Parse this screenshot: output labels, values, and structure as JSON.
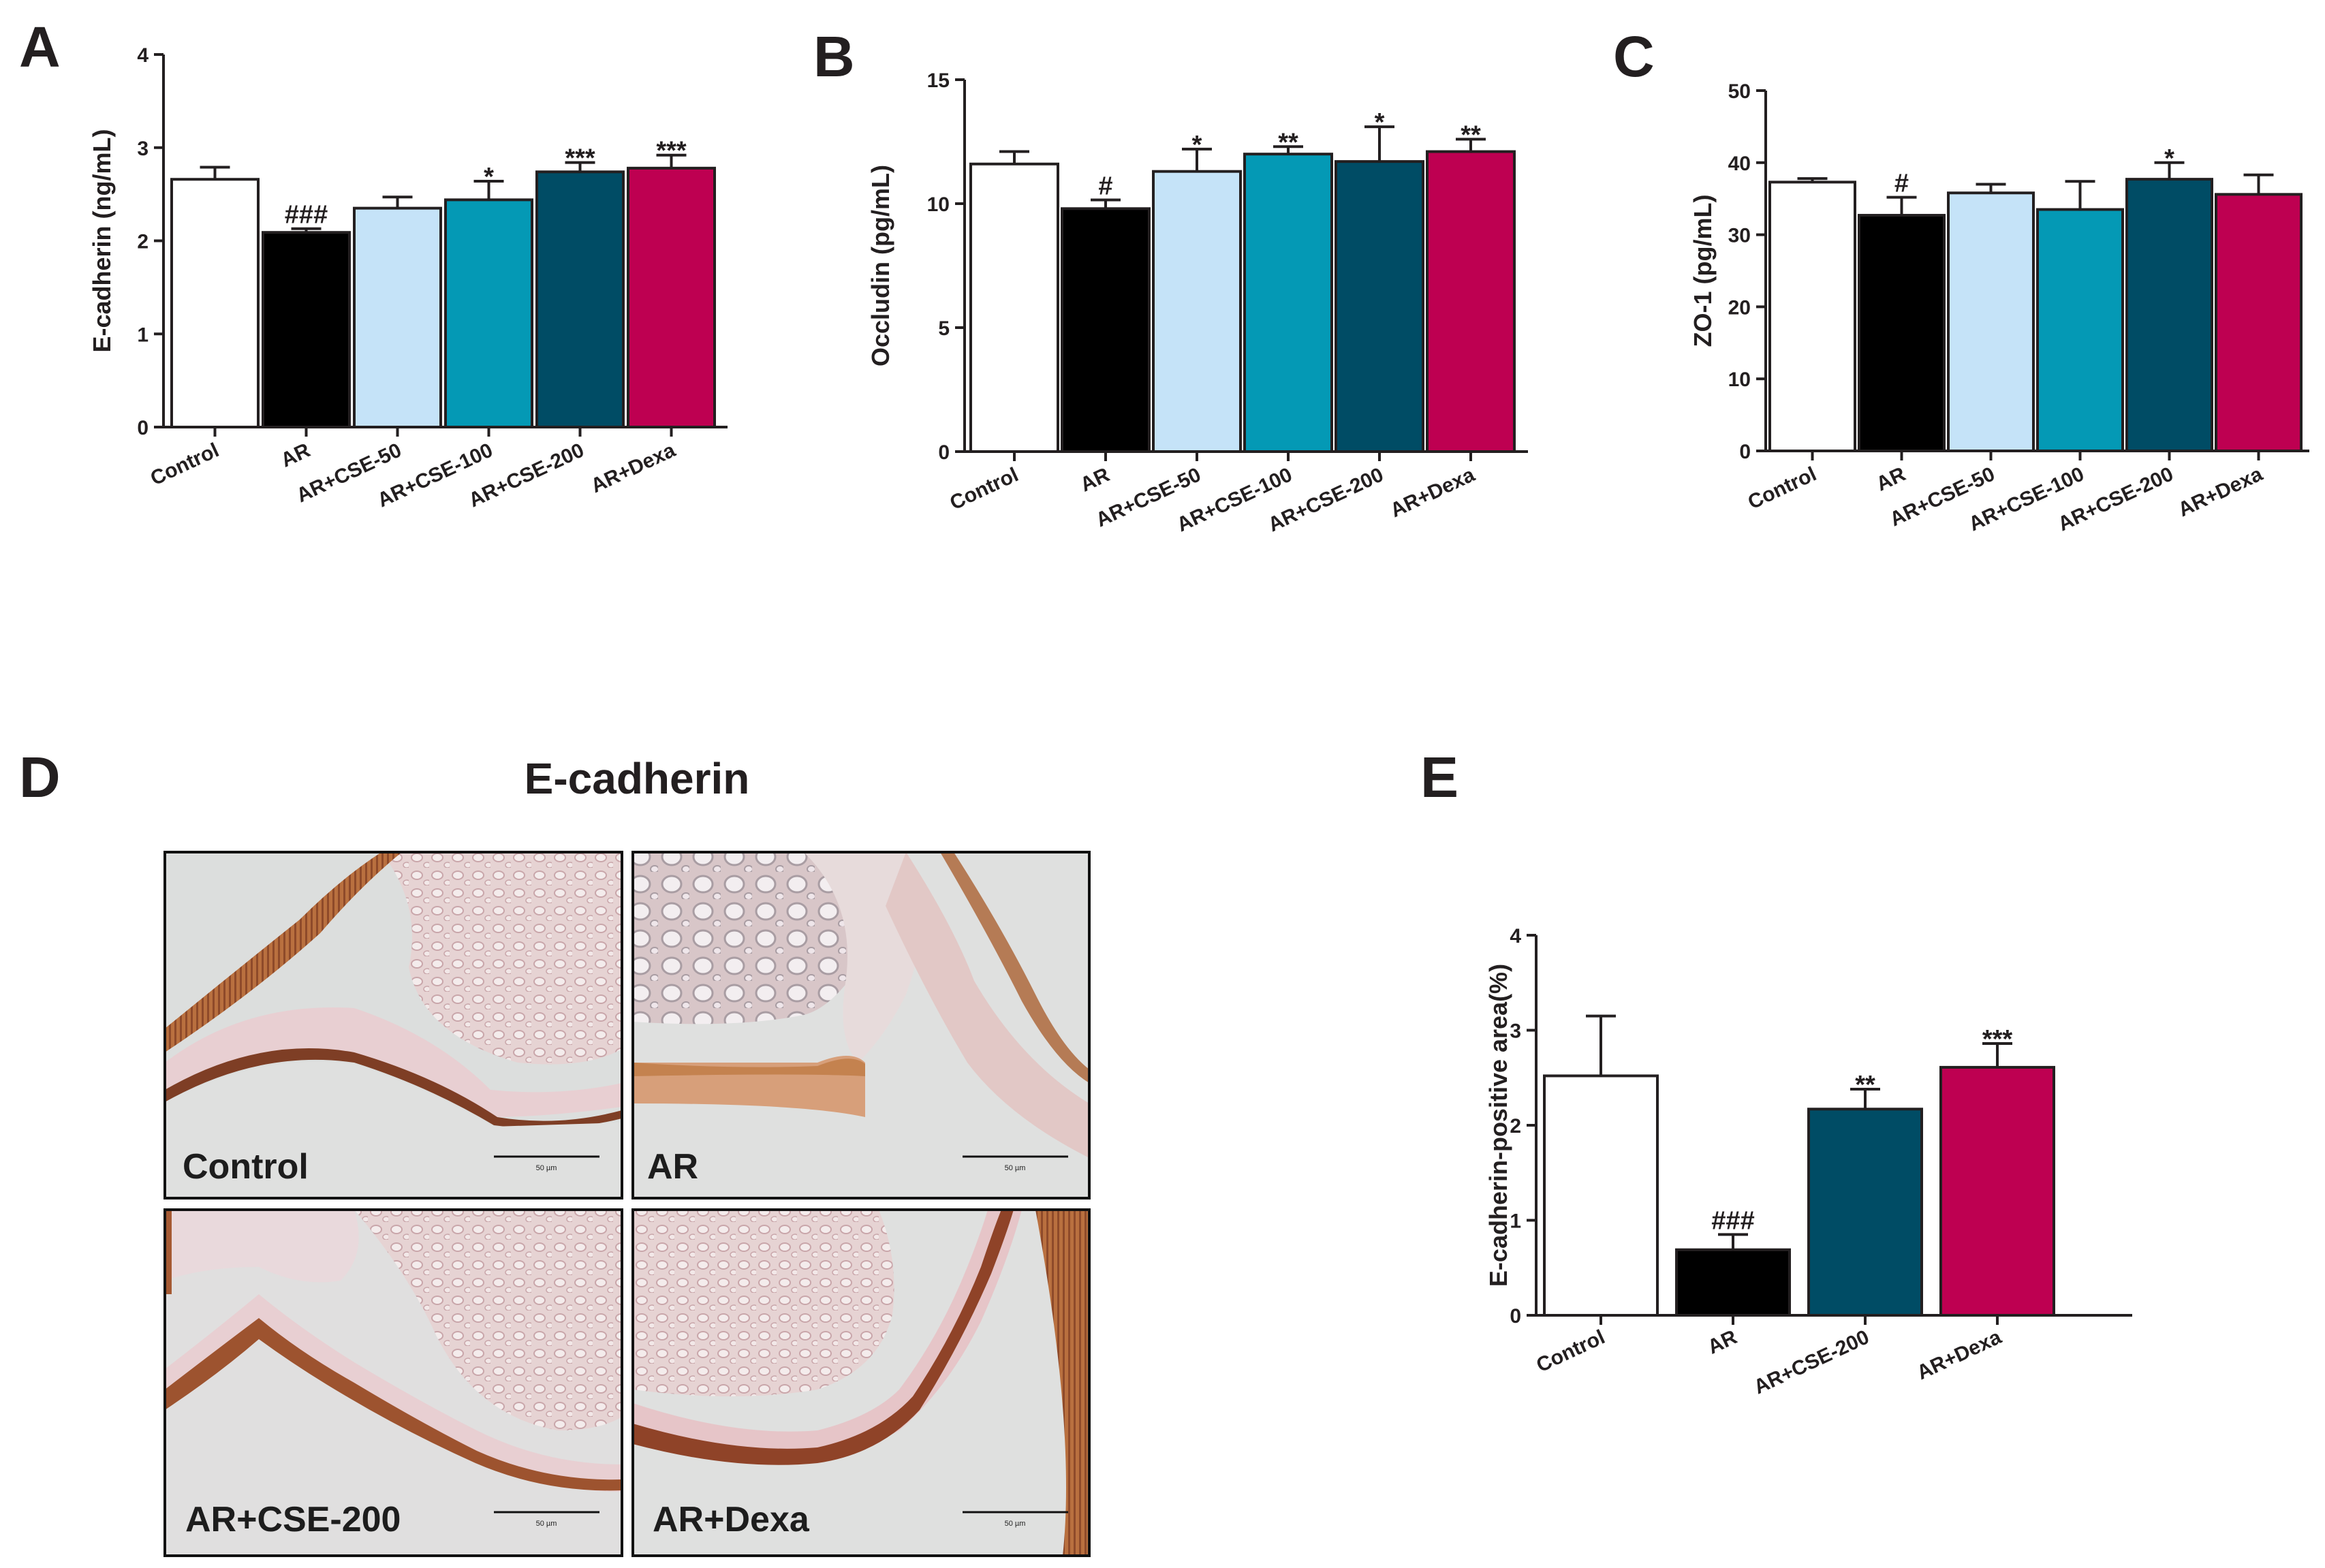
{
  "panel_labels": {
    "A": "A",
    "B": "B",
    "C": "C",
    "D": "D",
    "E": "E"
  },
  "colors": {
    "Control": "#ffffff",
    "AR": "#000000",
    "AR+CSE-50": "#c5e3f8",
    "AR+CSE-100": "#0499b5",
    "AR+CSE-200": "#004c65",
    "AR+Dexa": "#be0051"
  },
  "chart_data": [
    {
      "id": "A",
      "type": "bar",
      "ylabel": "E-cadherin (ng/mL)",
      "ylim": [
        0,
        4
      ],
      "yticks": [
        0,
        1,
        2,
        3,
        4
      ],
      "categories": [
        "Control",
        "AR",
        "AR+CSE-50",
        "AR+CSE-100",
        "AR+CSE-200",
        "AR+Dexa"
      ],
      "values": [
        2.66,
        2.09,
        2.35,
        2.44,
        2.74,
        2.78
      ],
      "errors": [
        0.13,
        0.04,
        0.12,
        0.2,
        0.1,
        0.14
      ],
      "annotations": [
        "",
        "###",
        "",
        "*",
        "***",
        "***"
      ]
    },
    {
      "id": "B",
      "type": "bar",
      "ylabel": "Occludin (pg/mL)",
      "ylim": [
        0,
        15
      ],
      "yticks": [
        0,
        5,
        10,
        15
      ],
      "categories": [
        "Control",
        "AR",
        "AR+CSE-50",
        "AR+CSE-100",
        "AR+CSE-200",
        "AR+Dexa"
      ],
      "values": [
        11.6,
        9.8,
        11.3,
        12.0,
        11.7,
        12.1
      ],
      "errors": [
        0.5,
        0.35,
        0.9,
        0.3,
        1.4,
        0.5
      ],
      "annotations": [
        "",
        "#",
        "*",
        "**",
        "*",
        "**"
      ]
    },
    {
      "id": "C",
      "type": "bar",
      "ylabel": "ZO-1 (pg/mL)",
      "ylim": [
        0,
        50
      ],
      "yticks": [
        0,
        10,
        20,
        30,
        40,
        50
      ],
      "categories": [
        "Control",
        "AR",
        "AR+CSE-50",
        "AR+CSE-100",
        "AR+CSE-200",
        "AR+Dexa"
      ],
      "values": [
        37.3,
        32.7,
        35.8,
        33.5,
        37.7,
        35.6
      ],
      "errors": [
        0.5,
        2.5,
        1.2,
        3.9,
        2.3,
        2.7
      ],
      "annotations": [
        "",
        "#",
        "",
        "",
        "*",
        ""
      ]
    },
    {
      "id": "E",
      "type": "bar",
      "ylabel": "E-cadherin-positive area(%)",
      "ylim": [
        0,
        4
      ],
      "yticks": [
        0,
        1,
        2,
        3,
        4
      ],
      "categories": [
        "Control",
        "AR",
        "AR+CSE-200",
        "AR+Dexa"
      ],
      "values": [
        2.52,
        0.69,
        2.17,
        2.61
      ],
      "errors": [
        0.63,
        0.16,
        0.21,
        0.25
      ],
      "annotations": [
        "",
        "###",
        "**",
        "***"
      ]
    }
  ],
  "micrographs": {
    "title": "E-cadherin",
    "scale_bar_text": "50 µm",
    "panels": [
      {
        "key": "control",
        "label": "Control"
      },
      {
        "key": "ar",
        "label": "AR"
      },
      {
        "key": "cse200",
        "label": "AR+CSE-200"
      },
      {
        "key": "dexa",
        "label": "AR+Dexa"
      }
    ]
  }
}
